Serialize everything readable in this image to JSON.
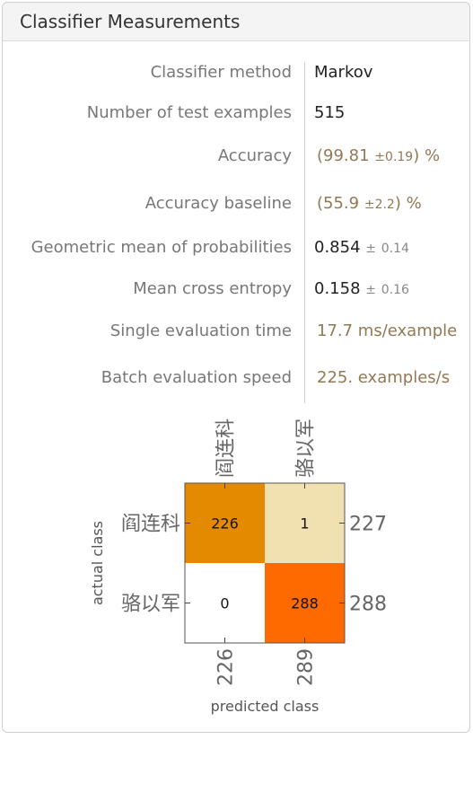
{
  "panel": {
    "title": "Classifier Measurements"
  },
  "metrics": [
    {
      "label": "Classifier method",
      "value": "Markov"
    },
    {
      "label": "Number of test examples",
      "value": "515"
    },
    {
      "label": "Accuracy",
      "open": "(",
      "value": "99.81",
      "pm": "±",
      "err": "0.19",
      "close": ")",
      "unit": "%"
    },
    {
      "label": "Accuracy baseline",
      "open": "(",
      "value": "55.9",
      "pm": "±",
      "err": "2.2",
      "close": ")",
      "unit": "%"
    },
    {
      "label": "Geometric mean of probabilities",
      "value": "0.854",
      "pm": "±",
      "err": "0.14"
    },
    {
      "label": "Mean cross entropy",
      "value": "0.158",
      "pm": "±",
      "err": "0.16"
    },
    {
      "label": "Single evaluation time",
      "value": "17.7 ms/example"
    },
    {
      "label": "Batch evaluation speed",
      "value": "225. examples/s"
    }
  ],
  "chart_data": {
    "type": "heatmap",
    "title": "",
    "classes": [
      "阎连科",
      "骆以军"
    ],
    "matrix": [
      [
        226,
        1
      ],
      [
        0,
        288
      ]
    ],
    "row_totals": [
      227,
      288
    ],
    "column_totals": [
      226,
      289
    ],
    "xlabel": "predicted class",
    "ylabel": "actual class",
    "colors": {
      "diag_first": "#e48a00",
      "diag_second": "#ff6a00",
      "off_low": "#f1e1b1",
      "zero": "#ffffff",
      "border": "#555555",
      "label": "#666666"
    }
  }
}
